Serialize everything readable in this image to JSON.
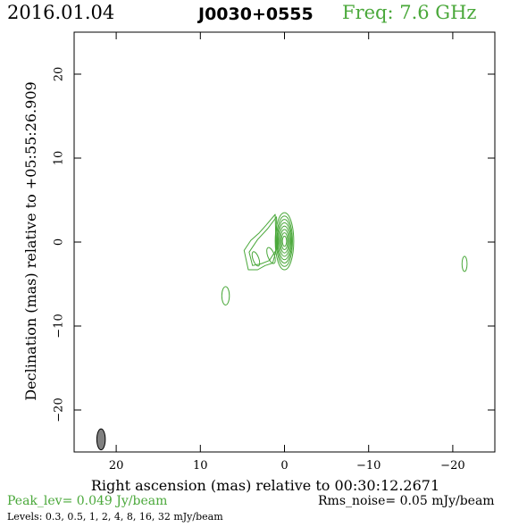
{
  "header": {
    "date": "2016.01.04",
    "source": "J0030+0555",
    "frequency": "Freq: 7.6 GHz"
  },
  "footer": {
    "peak": "Peak_lev=  0.049 Jy/beam",
    "rms": "Rms_noise= 0.05 mJy/beam",
    "levels": "Levels: 0.3, 0.5,   1,   2,   4,   8,  16,  32 mJy/beam"
  },
  "colors": {
    "contour": "#4aa83a",
    "beam": "#808080",
    "frequency_text": "#4aa83a"
  },
  "chart_data": {
    "type": "contour",
    "xlabel": "Right ascension (mas) relative to 00:30:12.2671",
    "ylabel": "Declination (mas) relative to +05:55:26.909",
    "xlim": [
      25,
      -25
    ],
    "ylim": [
      -25,
      25
    ],
    "x_inverted": true,
    "xticks": [
      20,
      10,
      0,
      -10,
      -20
    ],
    "yticks": [
      20,
      10,
      0,
      -10,
      -20
    ],
    "xtick_labels": [
      "20",
      "10",
      "0",
      "−10",
      "−20"
    ],
    "ytick_labels": [
      "20",
      "10",
      "0",
      "−10",
      "−20"
    ],
    "contour_levels_mJy": [
      0.3,
      0.5,
      1,
      2,
      4,
      8,
      16,
      32
    ],
    "peak_Jy_per_beam": 0.049,
    "rms_noise_mJy_per_beam": 0.05,
    "core": {
      "ra": 0,
      "dec": 0.1,
      "rings": [
        {
          "rx": 1.1,
          "ry": 3.4
        },
        {
          "rx": 0.95,
          "ry": 3.0
        },
        {
          "rx": 0.85,
          "ry": 2.6
        },
        {
          "rx": 0.75,
          "ry": 2.2
        },
        {
          "rx": 0.62,
          "ry": 1.8
        },
        {
          "rx": 0.5,
          "ry": 1.4
        },
        {
          "rx": 0.38,
          "ry": 1.0
        },
        {
          "rx": 0.25,
          "ry": 0.6
        }
      ]
    },
    "jet_components": [
      {
        "ra": 1.6,
        "dec": -1.6,
        "rx": 0.4,
        "ry": 1.0
      },
      {
        "ra": 3.4,
        "dec": -2.0,
        "rx": 0.35,
        "ry": 0.9
      }
    ],
    "jet_envelopes": [
      [
        [
          1.1,
          3.3
        ],
        [
          2.2,
          2.0
        ],
        [
          3.0,
          1.1
        ],
        [
          4.0,
          0.2
        ],
        [
          4.8,
          -1.0
        ],
        [
          4.3,
          -3.3
        ],
        [
          3.2,
          -3.3
        ],
        [
          2.3,
          -2.8
        ],
        [
          1.4,
          -2.5
        ],
        [
          1.0,
          -1.0
        ]
      ],
      [
        [
          0.95,
          3.0
        ],
        [
          2.0,
          1.6
        ],
        [
          3.2,
          0.3
        ],
        [
          4.2,
          -1.2
        ],
        [
          3.8,
          -2.8
        ],
        [
          2.8,
          -2.6
        ],
        [
          1.8,
          -2.2
        ],
        [
          0.9,
          -0.8
        ]
      ]
    ],
    "isolated_components": [
      {
        "ra": 7.0,
        "dec": -6.4,
        "rx": 0.45,
        "ry": 1.1
      },
      {
        "ra": -21.4,
        "dec": -2.6,
        "rx": 0.3,
        "ry": 0.9
      }
    ],
    "beam": {
      "ra": 21.8,
      "dec": -23.5,
      "major_mas": 2.5,
      "minor_mas": 1.0,
      "pa_deg": 0
    }
  }
}
